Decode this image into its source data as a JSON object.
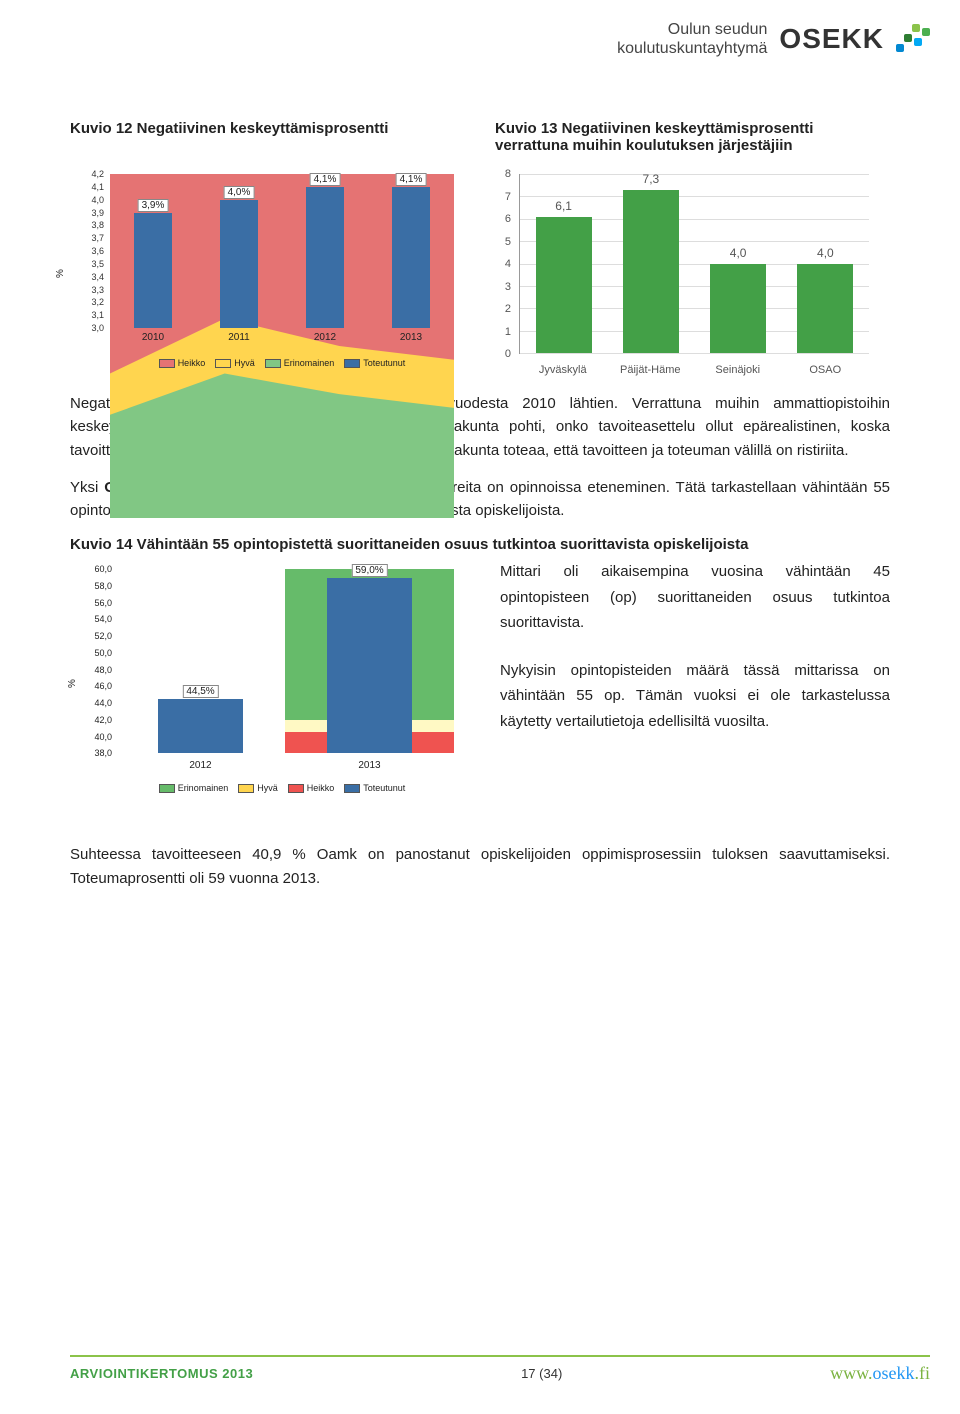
{
  "header": {
    "org_line1": "Oulun seudun",
    "org_line2": "koulutuskuntayhtymä",
    "logo_text": "OSEKK",
    "dot_colors": [
      "#8bc34a",
      "#4caf50",
      "#2e7d32",
      "#03a9f4",
      "#0288d1"
    ]
  },
  "kuvio12": {
    "title": "Kuvio 12 Negatiivinen keskeyttämisprosentti",
    "type": "stacked-area+bar",
    "y_min": 3.0,
    "y_max": 4.2,
    "y_step": 0.1,
    "y_label": "%",
    "years": [
      "2010",
      "2011",
      "2012",
      "2013"
    ],
    "bar_values": [
      3.9,
      4.0,
      4.1,
      4.1
    ],
    "bar_labels": [
      "3,9%",
      "4,0%",
      "4,1%",
      "4,1%"
    ],
    "bar_color": "#3a6ea5",
    "legend": [
      {
        "label": "Heikko",
        "color": "#e57373"
      },
      {
        "label": "Hyvä",
        "color": "#ffd54f"
      },
      {
        "label": "Erinomainen",
        "color": "#81c784"
      },
      {
        "label": "Toteutunut",
        "color": "#3a6ea5"
      }
    ],
    "area_bg": "#e57373",
    "area_mid": "#ffd54f",
    "area_low": "#81c784",
    "area_top_fracs": [
      0.42,
      0.58,
      0.5,
      0.46
    ],
    "area_mid_fracs": [
      0.3,
      0.42,
      0.36,
      0.32
    ]
  },
  "kuvio13": {
    "title": "Kuvio 13 Negatiivinen keskeyttämisprosentti verrattuna muihin koulutuksen järjestäjiin",
    "type": "bar",
    "y_min": 0,
    "y_max": 8,
    "y_step": 1,
    "categories": [
      "Jyväskylä",
      "Päijät-Häme",
      "Seinäjoki",
      "OSAO"
    ],
    "values": [
      6.1,
      7.3,
      4.0,
      4.0
    ],
    "labels": [
      "6,1",
      "7,3",
      "4,0",
      "4,0"
    ],
    "bar_color": "#43a047",
    "grid_color": "#dddddd"
  },
  "para1": "Negatiivinen keskeyttäminen on pysynyt samana vuodesta 2010 lähtien. Verrattuna muihin ammattiopistoihin keskeyttämisprosentti on hyvällä tasolla. Tarkastuslautakunta pohti, onko tavoiteasettelu ollut epärealistinen, koska tavoitteeseen ei ole päästy neljänä vuotena. Tarkastuslautakunta toteaa, että tavoitteen ja toteuman välillä on ristiriita.",
  "para2a": "Yksi ",
  "para2b": "Oamkin",
  "para2c": " keskeisimpiä toiminnan seuraamisen mittareita on opinnoissa eteneminen. Tätä tarkastellaan vähintään 55 opintopisteen suorittaneiden osuudella tutkintoa suorittavista opiskelijoista.",
  "kuvio14": {
    "title": "Kuvio 14 Vähintään 55 opintopistettä suorittaneiden osuus tutkintoa suorittavista opiskelijoista",
    "type": "stacked-bg+bar",
    "y_min": 38.0,
    "y_max": 60.0,
    "y_step": 2.0,
    "y_label": "%",
    "years": [
      "2012",
      "2013"
    ],
    "bar_values": [
      44.5,
      59.0
    ],
    "bar_labels": [
      "44,5%",
      "59,0%"
    ],
    "bar_color": "#3a6ea5",
    "legend": [
      {
        "label": "Erinomainen",
        "color": "#66bb6a"
      },
      {
        "label": "Hyvä",
        "color": "#ffd54f"
      },
      {
        "label": "Heikko",
        "color": "#ef5350"
      },
      {
        "label": "Toteutunut",
        "color": "#3a6ea5"
      }
    ],
    "bg_bands_2013": [
      {
        "color": "#66bb6a",
        "from": 42.0,
        "to": 60.0
      },
      {
        "color": "#fff9c4",
        "from": 40.5,
        "to": 42.0
      },
      {
        "color": "#ef5350",
        "from": 38.0,
        "to": 40.5
      }
    ]
  },
  "side1": "Mittari oli aikaisempina vuosina vähintään 45 opintopisteen (op) suorittaneiden osuus tutkintoa suorittavista.",
  "side2": "Nykyisin opintopisteiden määrä tässä mittarissa on vähintään 55 op. Tämän vuoksi ei ole tarkastelussa käytetty vertailutietoja edellisiltä vuosilta.",
  "para3": "Suhteessa tavoitteeseen 40,9 % Oamk on panostanut opiskelijoiden oppimisprosessiin tuloksen saavuttamiseksi. Toteumaprosentti oli 59 vuonna 2013.",
  "footer": {
    "left": "ARVIOINTIKERTOMUS 2013",
    "center": "17 (34)",
    "right_prefix": "www.",
    "right_name": "osekk",
    "right_suffix": ".fi"
  }
}
